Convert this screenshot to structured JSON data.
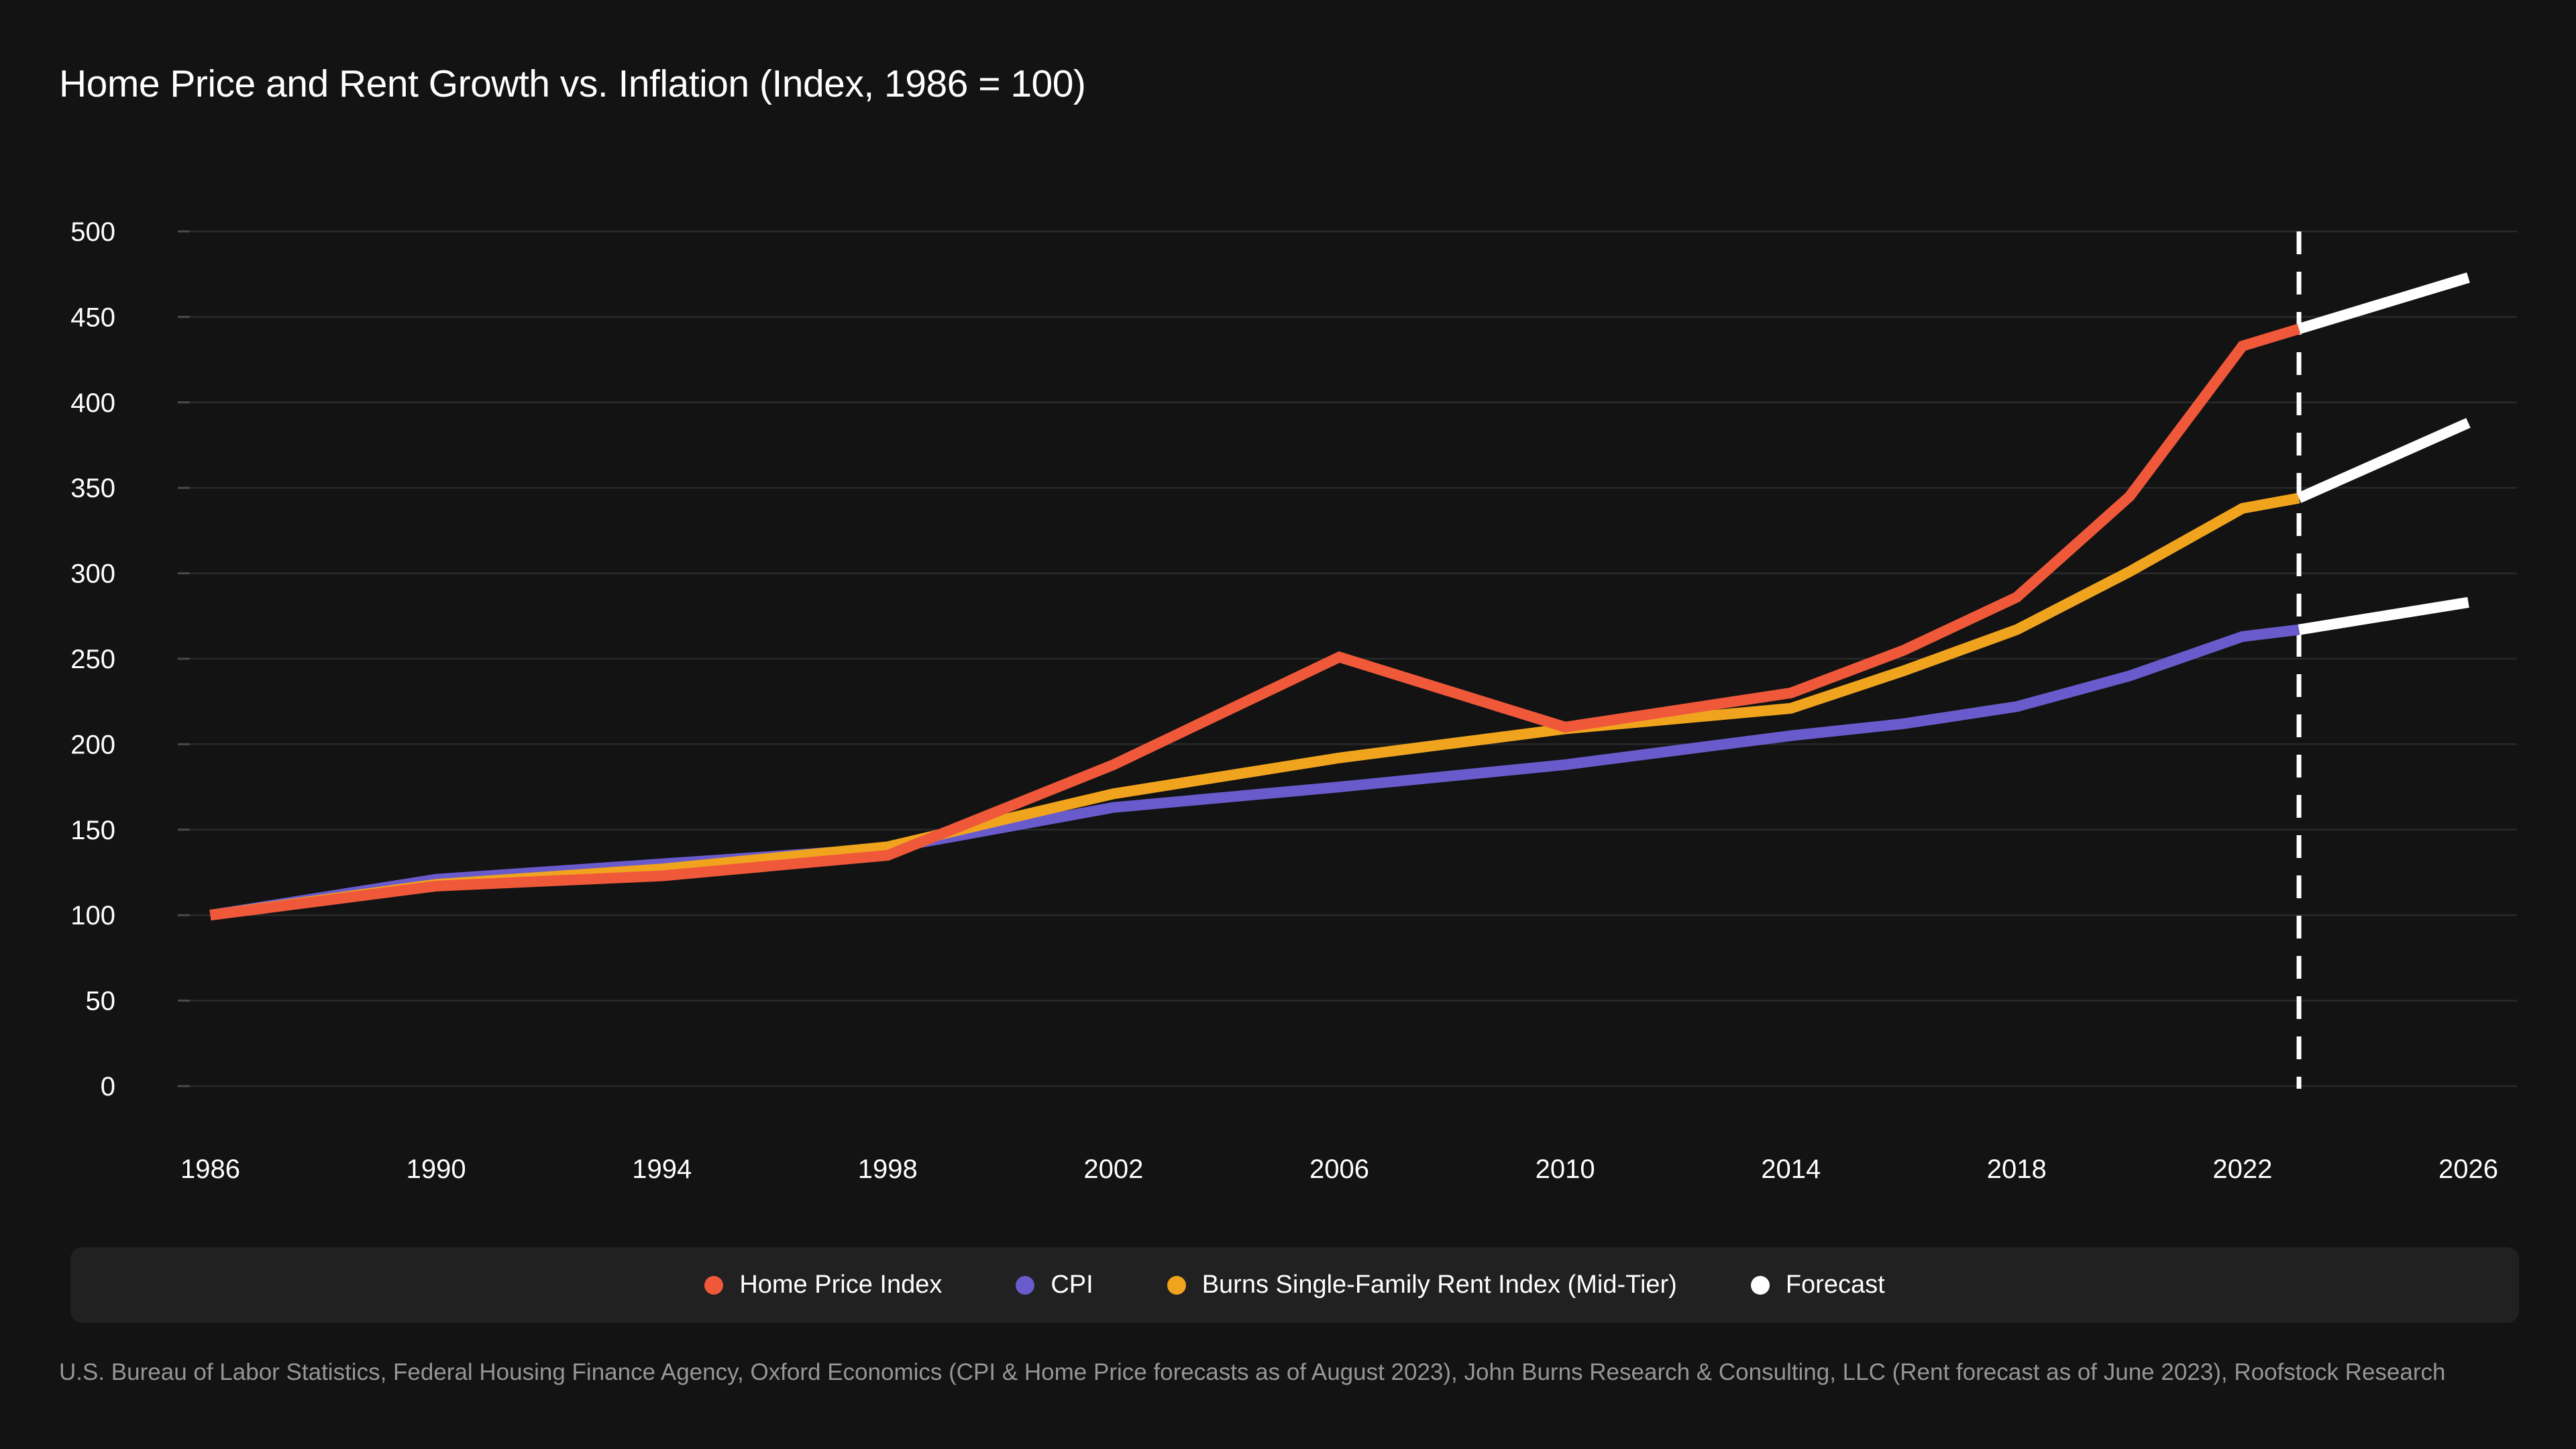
{
  "title": "Home Price and Rent Growth vs. Inflation (Index, 1986 = 100)",
  "source_note": "U.S. Bureau of Labor Statistics, Federal Housing Finance Agency, Oxford Economics (CPI & Home Price forecasts as of August 2023), John Burns Research & Consulting, LLC (Rent forecast as of June 2023), Roofstock Research",
  "colors": {
    "background": "#131313",
    "panel": "#212121",
    "gridline": "#2A2A2A",
    "tick": "#4A4A4A",
    "text_primary": "#FFFFFF",
    "text_muted": "#969696",
    "home_price_index": "#F0583A",
    "cpi": "#6A5BCC",
    "rent_index": "#F0A41E",
    "forecast": "#FFFFFF"
  },
  "legend": {
    "items": [
      {
        "label": "Home Price Index",
        "color": "#F0583A"
      },
      {
        "label": "CPI",
        "color": "#6A5BCC"
      },
      {
        "label": "Burns Single-Family Rent Index (Mid-Tier)",
        "color": "#F0A41E"
      },
      {
        "label": "Forecast",
        "color": "#FFFFFF"
      }
    ]
  },
  "chart_data": {
    "type": "line",
    "title": "Home Price and Rent Growth vs. Inflation (Index, 1986 = 100)",
    "xlim": [
      1986,
      2026
    ],
    "ylim": [
      0,
      500
    ],
    "x_ticks": [
      1986,
      1990,
      1994,
      1998,
      2002,
      2006,
      2010,
      2014,
      2018,
      2022,
      2026
    ],
    "y_ticks": [
      0,
      50,
      100,
      150,
      200,
      250,
      300,
      350,
      400,
      450,
      500
    ],
    "grid": true,
    "legend_position": "bottom",
    "forecast_boundary_x": 2023,
    "x": [
      1986,
      1990,
      1994,
      1998,
      2002,
      2006,
      2010,
      2014,
      2016,
      2018,
      2020,
      2022,
      2023
    ],
    "series": [
      {
        "name": "CPI",
        "color": "#6A5BCC",
        "values": [
          100,
          121,
          130,
          139,
          163,
          175,
          188,
          205,
          212,
          222,
          240,
          263,
          267
        ]
      },
      {
        "name": "Burns Single-Family Rent Index (Mid-Tier)",
        "color": "#F0A41E",
        "values": [
          100,
          118,
          127,
          140,
          171,
          192,
          209,
          221,
          243,
          267,
          301,
          338,
          344
        ]
      },
      {
        "name": "Home Price Index",
        "color": "#F0583A",
        "values": [
          100,
          117,
          123,
          135,
          188,
          251,
          210,
          230,
          255,
          286,
          345,
          433,
          443
        ]
      }
    ],
    "forecast_series": [
      {
        "name": "Home Price Index forecast",
        "x": [
          2023,
          2026
        ],
        "values": [
          443,
          473
        ]
      },
      {
        "name": "Burns Single-Family Rent Index (Mid-Tier) forecast",
        "x": [
          2023,
          2026
        ],
        "values": [
          344,
          388
        ]
      },
      {
        "name": "CPI forecast",
        "x": [
          2023,
          2026
        ],
        "values": [
          267,
          283
        ]
      }
    ],
    "forecast_color": "#FFFFFF"
  }
}
